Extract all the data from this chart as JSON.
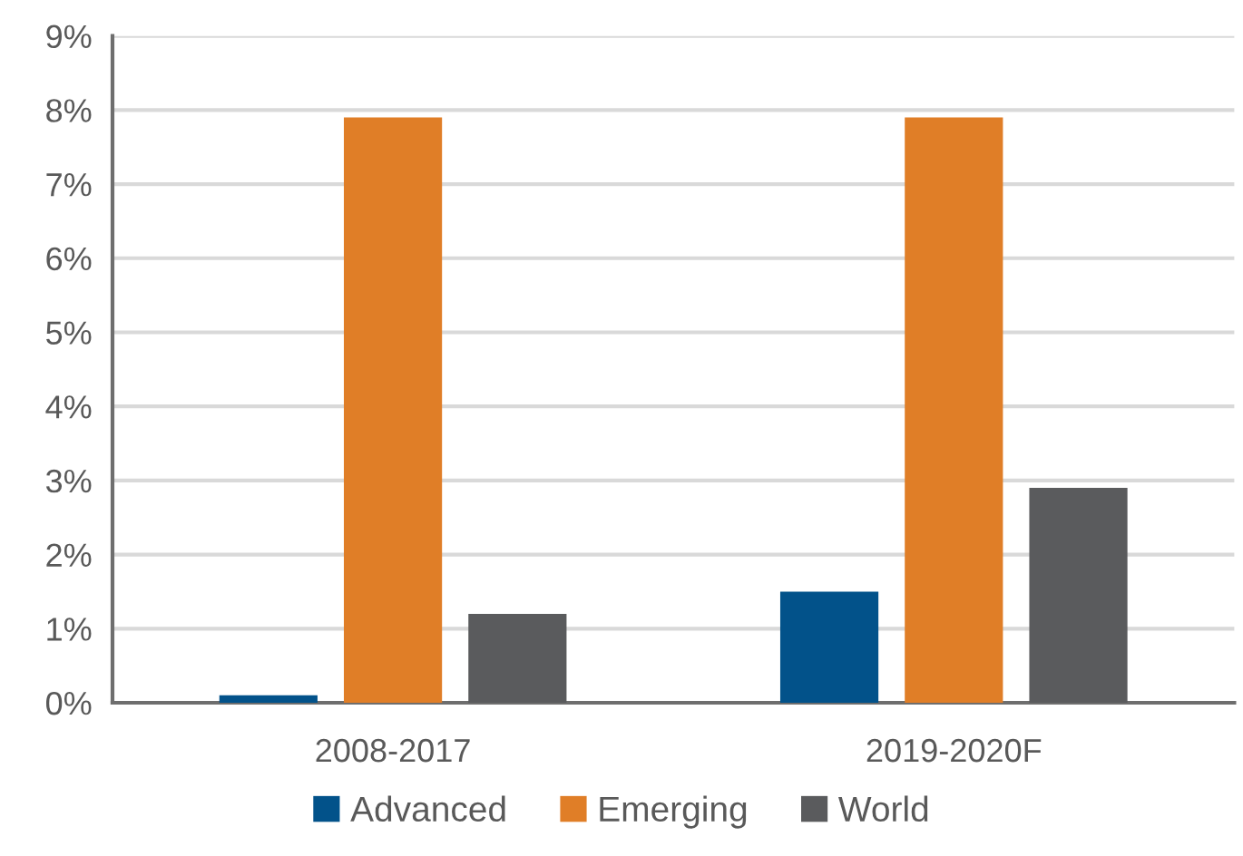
{
  "chart_data": {
    "type": "bar",
    "categories": [
      "2008-2017",
      "2019-2020F"
    ],
    "series": [
      {
        "name": "Advanced",
        "color": "#02528a",
        "values": [
          0.1,
          1.5
        ]
      },
      {
        "name": "Emerging",
        "color": "#e07e27",
        "values": [
          7.9,
          7.9
        ]
      },
      {
        "name": "World",
        "color": "#5a5b5d",
        "values": [
          1.2,
          2.9
        ]
      }
    ],
    "ylim": [
      0,
      9
    ],
    "yticks": [
      {
        "value": 0,
        "label": "0%"
      },
      {
        "value": 1,
        "label": "1%"
      },
      {
        "value": 2,
        "label": "2%"
      },
      {
        "value": 3,
        "label": "3%"
      },
      {
        "value": 4,
        "label": "4%"
      },
      {
        "value": 5,
        "label": "5%"
      },
      {
        "value": 6,
        "label": "6%"
      },
      {
        "value": 7,
        "label": "7%"
      },
      {
        "value": 8,
        "label": "8%"
      },
      {
        "value": 9,
        "label": "9%"
      }
    ],
    "grid": "y",
    "legend": "bottom"
  }
}
